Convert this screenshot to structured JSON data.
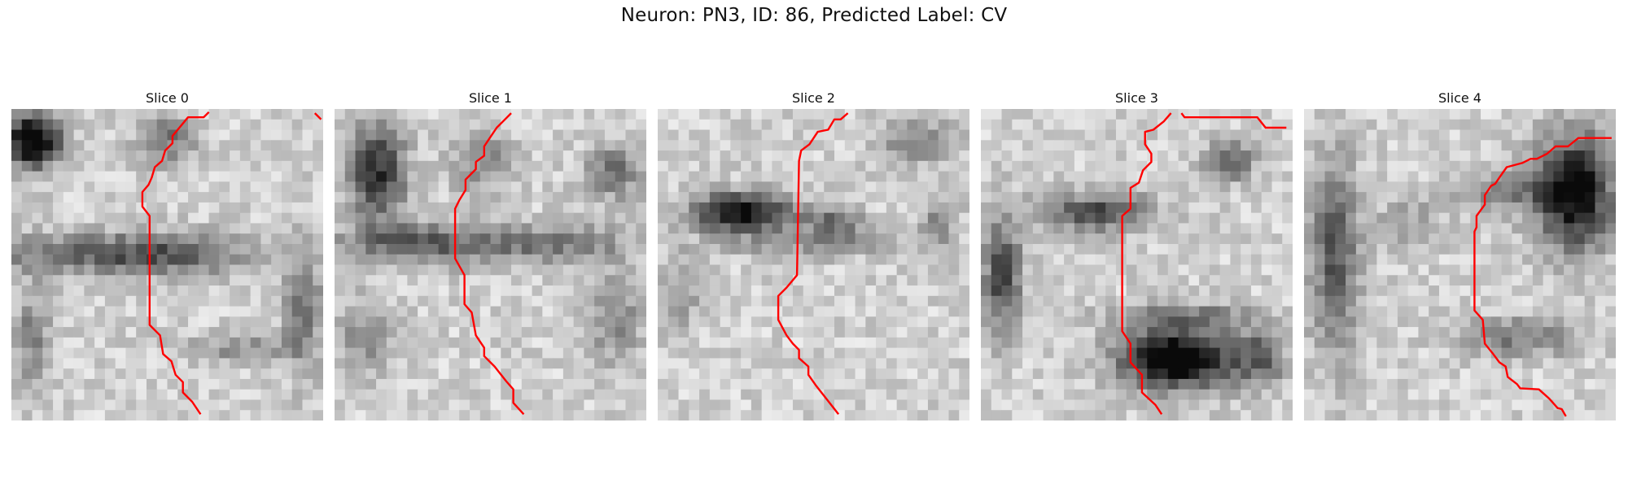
{
  "figure": {
    "title": "Neuron: PN3, ID: 86, Predicted Label: CV"
  },
  "style": {
    "trace_color": "#ff0000"
  },
  "panels": [
    {
      "title": "Slice 0"
    },
    {
      "title": "Slice 1"
    },
    {
      "title": "Slice 2"
    },
    {
      "title": "Slice 3"
    },
    {
      "title": "Slice 4"
    }
  ]
}
